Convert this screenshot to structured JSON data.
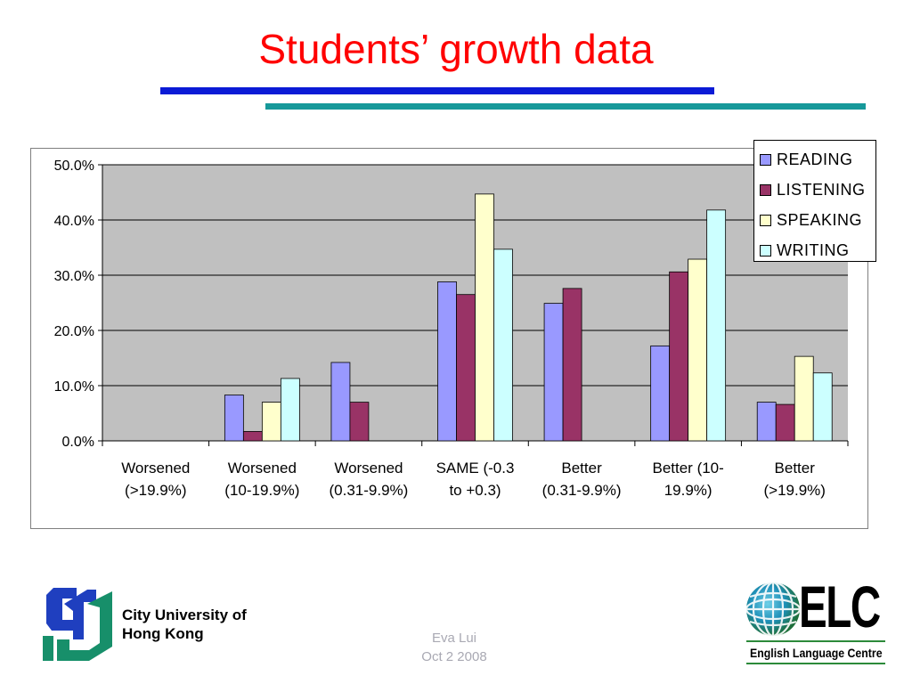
{
  "slide": {
    "title": "Students’ growth data",
    "footer_org_line1": "City University of",
    "footer_org_line2": "Hong Kong",
    "author_name": "Eva Lui",
    "author_date": "Oct 2 2008",
    "elc_logo_text": "ELC",
    "elc_subtitle": "English Language Centre"
  },
  "colors": {
    "title": "#ff0000",
    "plot_bg": "#c0c0c0",
    "accent_blue": "#0b1bd6",
    "accent_teal": "#17999a"
  },
  "chart_data": {
    "type": "bar",
    "categories": [
      [
        "Worsened",
        "(>19.9%)"
      ],
      [
        "Worsened",
        "(10-19.9%)"
      ],
      [
        "Worsened",
        "(0.31-9.9%)"
      ],
      [
        "SAME (-0.3",
        "to +0.3)"
      ],
      [
        "Better",
        "(0.31-9.9%)"
      ],
      [
        "Better (10-",
        "19.9%)"
      ],
      [
        "Better",
        "(>19.9%)"
      ]
    ],
    "series": [
      {
        "name": "READING",
        "color": "#9999ff",
        "values": [
          0,
          8.3,
          14.2,
          28.8,
          24.9,
          17.2,
          7.0
        ]
      },
      {
        "name": "LISTENING",
        "color": "#993366",
        "values": [
          0,
          1.7,
          7.0,
          26.5,
          27.6,
          30.6,
          6.6
        ]
      },
      {
        "name": "SPEAKING",
        "color": "#ffffcc",
        "values": [
          0,
          7.0,
          0,
          44.7,
          0,
          32.9,
          15.3
        ]
      },
      {
        "name": "WRITING",
        "color": "#ccffff",
        "values": [
          0,
          11.3,
          0,
          34.7,
          0,
          41.8,
          12.3
        ]
      }
    ],
    "yticks": [
      "0.0%",
      "10.0%",
      "20.0%",
      "30.0%",
      "40.0%",
      "50.0%"
    ],
    "ylim": [
      0,
      50
    ],
    "grid": true,
    "legend_position": "top-right"
  }
}
